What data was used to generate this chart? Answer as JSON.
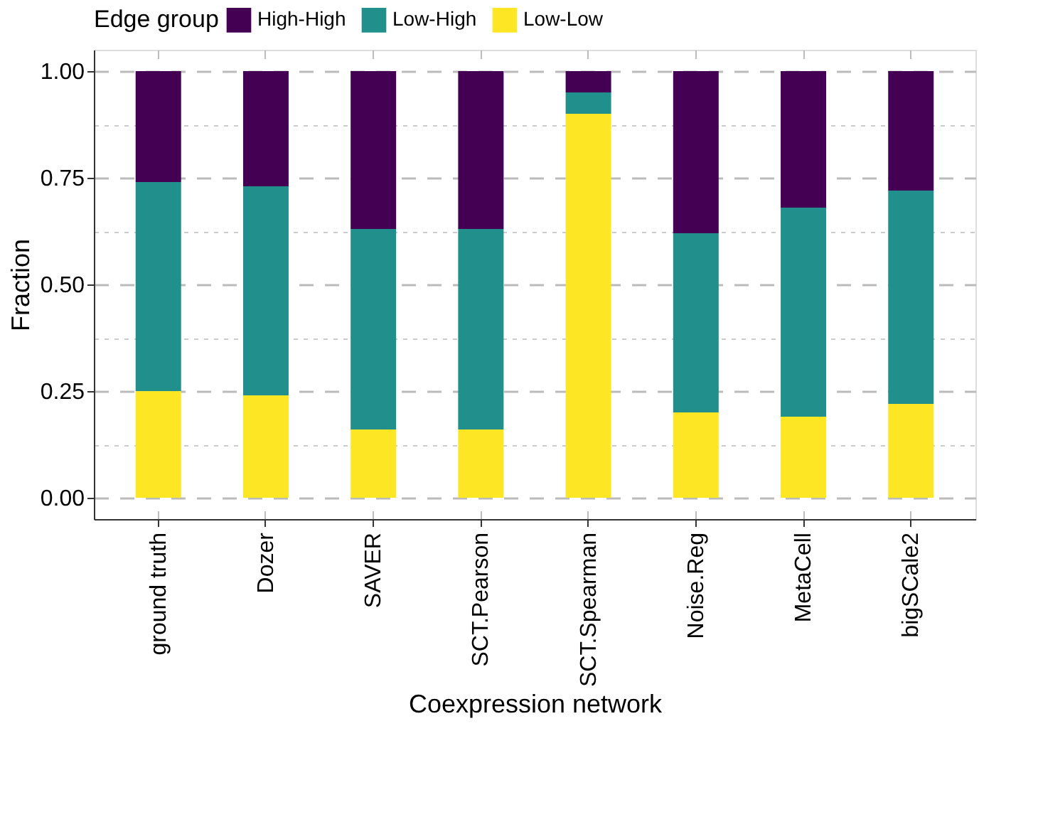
{
  "chart_data": {
    "type": "bar",
    "stacked": true,
    "xlabel": "Coexpression network",
    "ylabel": "Fraction",
    "legend_title": "Edge group",
    "legend": "top",
    "categories": [
      "ground truth",
      "Dozer",
      "SAVER",
      "SCT.Pearson",
      "SCT.Spearman",
      "Noise.Reg",
      "MetaCell",
      "bigSCale2"
    ],
    "series": [
      {
        "name": "Low-Low",
        "color": "#fde725",
        "values": [
          0.25,
          0.24,
          0.16,
          0.16,
          0.9,
          0.2,
          0.19,
          0.22
        ]
      },
      {
        "name": "Low-High",
        "color": "#21908c",
        "values": [
          0.49,
          0.49,
          0.47,
          0.47,
          0.05,
          0.42,
          0.49,
          0.5
        ]
      },
      {
        "name": "High-High",
        "color": "#440154",
        "values": [
          0.26,
          0.27,
          0.37,
          0.37,
          0.05,
          0.38,
          0.32,
          0.28
        ]
      }
    ],
    "ylim": [
      -0.05,
      1.05
    ],
    "yticks": [
      {
        "value": 0,
        "label": "0.00"
      },
      {
        "value": 0.125,
        "label": null
      },
      {
        "value": 0.25,
        "label": "0.25"
      },
      {
        "value": 0.375,
        "label": null
      },
      {
        "value": 0.5,
        "label": "0.50"
      },
      {
        "value": 0.625,
        "label": null
      },
      {
        "value": 0.75,
        "label": "0.75"
      },
      {
        "value": 0.875,
        "label": null
      },
      {
        "value": 1,
        "label": "1.00"
      }
    ],
    "grid": true
  }
}
